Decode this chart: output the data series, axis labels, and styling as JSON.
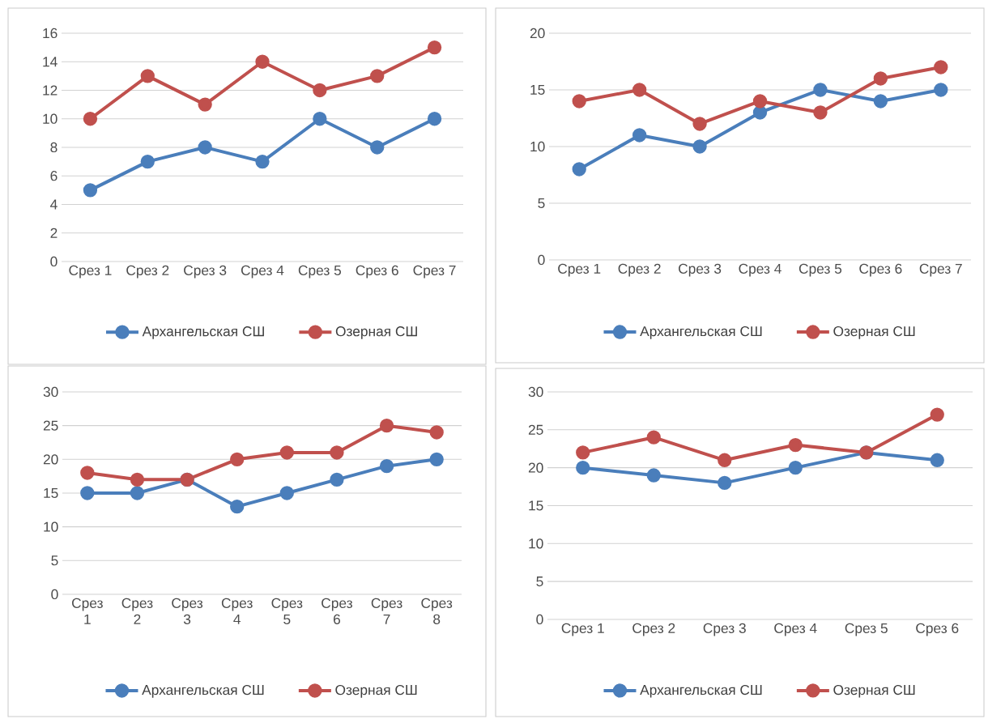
{
  "chart_data": [
    {
      "type": "line",
      "categories": [
        "Срез 1",
        "Срез 2",
        "Срез 3",
        "Срез 4",
        "Срез 5",
        "Срез 6",
        "Срез 7"
      ],
      "ylim": [
        0,
        16
      ],
      "yticks": [
        0,
        2,
        4,
        6,
        8,
        10,
        12,
        14,
        16
      ],
      "grid": "y",
      "legend": "bottom",
      "marker": "circle",
      "series": [
        {
          "name": "Архангельская СШ",
          "color": "#4a7ebb",
          "values": [
            5,
            7,
            8,
            7,
            10,
            8,
            10
          ]
        },
        {
          "name": "Озерная СШ",
          "color": "#c0504d",
          "values": [
            10,
            13,
            11,
            14,
            12,
            13,
            15
          ]
        }
      ]
    },
    {
      "type": "line",
      "categories": [
        "Срез 1",
        "Срез 2",
        "Срез 3",
        "Срез 4",
        "Срез 5",
        "Срез 6",
        "Срез 7"
      ],
      "ylim": [
        0,
        20
      ],
      "yticks": [
        0,
        5,
        10,
        15,
        20
      ],
      "grid": "y",
      "legend": "bottom",
      "marker": "circle",
      "series": [
        {
          "name": "Архангельская СШ",
          "color": "#4a7ebb",
          "values": [
            8,
            11,
            10,
            13,
            15,
            14,
            15
          ]
        },
        {
          "name": "Озерная СШ",
          "color": "#c0504d",
          "values": [
            14,
            15,
            12,
            14,
            13,
            16,
            17
          ]
        }
      ]
    },
    {
      "type": "line",
      "categories": [
        "Срез 1",
        "Срез 2",
        "Срез 3",
        "Срез 4",
        "Срез 5",
        "Срез 6",
        "Срез 7",
        "Срез 8"
      ],
      "ylim": [
        0,
        30
      ],
      "yticks": [
        0,
        5,
        10,
        15,
        20,
        25,
        30
      ],
      "grid": "y",
      "legend": "bottom",
      "marker": "circle",
      "series": [
        {
          "name": "Архангельская СШ",
          "color": "#4a7ebb",
          "values": [
            15,
            15,
            17,
            13,
            15,
            17,
            19,
            20
          ]
        },
        {
          "name": "Озерная СШ",
          "color": "#c0504d",
          "values": [
            18,
            17,
            17,
            20,
            21,
            21,
            25,
            24
          ]
        }
      ]
    },
    {
      "type": "line",
      "categories": [
        "Срез 1",
        "Срез 2",
        "Срез 3",
        "Срез 4",
        "Срез 5",
        "Срез 6"
      ],
      "ylim": [
        0,
        30
      ],
      "yticks": [
        0,
        5,
        10,
        15,
        20,
        25,
        30
      ],
      "grid": "y",
      "legend": "bottom",
      "marker": "circle",
      "series": [
        {
          "name": "Архангельская СШ",
          "color": "#4a7ebb",
          "values": [
            20,
            19,
            18,
            20,
            22,
            21
          ]
        },
        {
          "name": "Озерная СШ",
          "color": "#c0504d",
          "values": [
            22,
            24,
            21,
            23,
            22,
            27
          ]
        }
      ]
    }
  ]
}
